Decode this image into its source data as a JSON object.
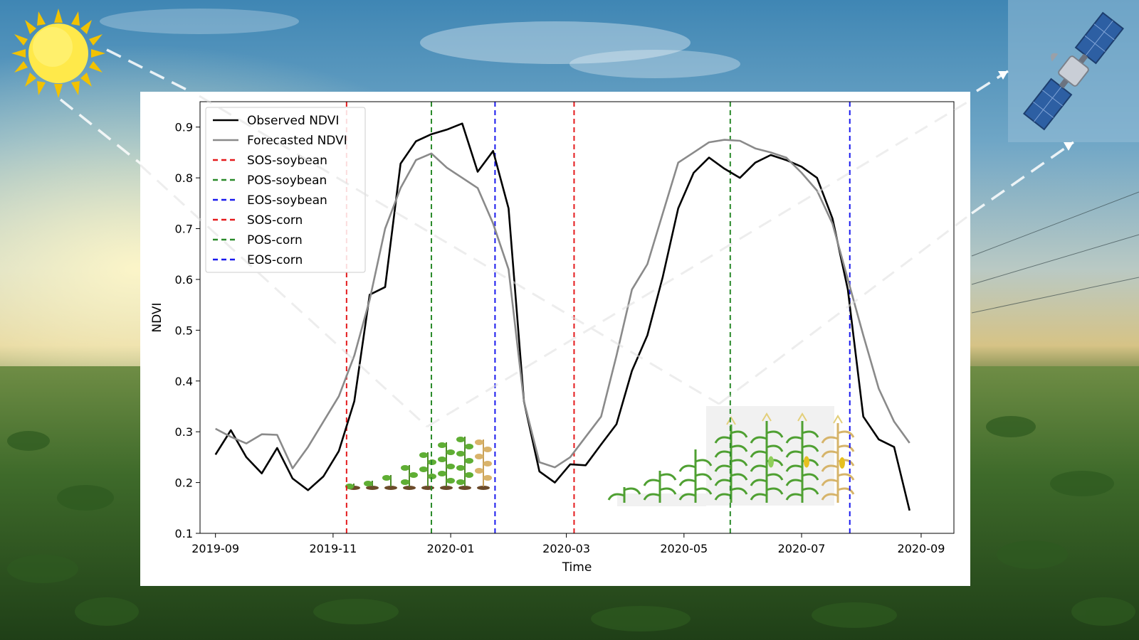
{
  "chart_data": {
    "type": "line",
    "title": "",
    "xlabel": "Time",
    "ylabel": "NDVI",
    "ylim": [
      0.1,
      0.95
    ],
    "xlim": [
      "2019-08-24",
      "2020-09-18"
    ],
    "grid": false,
    "legend_position": "top-left",
    "x_ticks": [
      "2019-09",
      "2019-11",
      "2020-01",
      "2020-03",
      "2020-05",
      "2020-07",
      "2020-09"
    ],
    "y_ticks": [
      "0.1",
      "0.2",
      "0.3",
      "0.4",
      "0.5",
      "0.6",
      "0.7",
      "0.8",
      "0.9"
    ],
    "series": [
      {
        "name": "Observed NDVI",
        "color": "#000000",
        "x": [
          "2019-09-01",
          "2019-09-09",
          "2019-09-17",
          "2019-09-25",
          "2019-10-03",
          "2019-10-11",
          "2019-10-19",
          "2019-10-27",
          "2019-11-04",
          "2019-11-12",
          "2019-11-20",
          "2019-11-28",
          "2019-12-06",
          "2019-12-14",
          "2019-12-22",
          "2019-12-30",
          "2020-01-07",
          "2020-01-15",
          "2020-01-23",
          "2020-01-31",
          "2020-02-08",
          "2020-02-16",
          "2020-02-24",
          "2020-03-03",
          "2020-03-11",
          "2020-03-19",
          "2020-03-27",
          "2020-04-04",
          "2020-04-12",
          "2020-04-20",
          "2020-04-28",
          "2020-05-06",
          "2020-05-14",
          "2020-05-22",
          "2020-05-30",
          "2020-06-07",
          "2020-06-15",
          "2020-06-23",
          "2020-07-01",
          "2020-07-09",
          "2020-07-17",
          "2020-07-25",
          "2020-08-02",
          "2020-08-10",
          "2020-08-18",
          "2020-08-26"
        ],
        "values": [
          0.255,
          0.303,
          0.25,
          0.218,
          0.268,
          0.208,
          0.185,
          0.212,
          0.262,
          0.36,
          0.57,
          0.585,
          0.828,
          0.872,
          0.886,
          0.895,
          0.907,
          0.812,
          0.853,
          0.74,
          0.36,
          0.222,
          0.2,
          0.236,
          0.234,
          0.275,
          0.315,
          0.42,
          0.49,
          0.605,
          0.74,
          0.81,
          0.84,
          0.818,
          0.8,
          0.83,
          0.845,
          0.835,
          0.822,
          0.8,
          0.72,
          0.58,
          0.33,
          0.285,
          0.27,
          0.145
        ]
      },
      {
        "name": "Forecasted NDVI",
        "color": "#8a8a8a",
        "x": [
          "2019-09-01",
          "2019-09-09",
          "2019-09-17",
          "2019-09-25",
          "2019-10-03",
          "2019-10-11",
          "2019-10-19",
          "2019-10-27",
          "2019-11-04",
          "2019-11-12",
          "2019-11-20",
          "2019-11-28",
          "2019-12-06",
          "2019-12-14",
          "2019-12-22",
          "2019-12-30",
          "2020-01-07",
          "2020-01-15",
          "2020-01-23",
          "2020-01-31",
          "2020-02-08",
          "2020-02-16",
          "2020-02-24",
          "2020-03-03",
          "2020-03-11",
          "2020-03-19",
          "2020-03-27",
          "2020-04-04",
          "2020-04-12",
          "2020-04-20",
          "2020-04-28",
          "2020-05-06",
          "2020-05-14",
          "2020-05-22",
          "2020-05-30",
          "2020-06-07",
          "2020-06-15",
          "2020-06-23",
          "2020-07-01",
          "2020-07-09",
          "2020-07-17",
          "2020-07-25",
          "2020-08-02",
          "2020-08-10",
          "2020-08-18",
          "2020-08-26"
        ],
        "values": [
          0.306,
          0.29,
          0.277,
          0.295,
          0.294,
          0.228,
          0.27,
          0.32,
          0.37,
          0.45,
          0.56,
          0.7,
          0.78,
          0.835,
          0.848,
          0.82,
          0.8,
          0.78,
          0.71,
          0.62,
          0.36,
          0.24,
          0.23,
          0.25,
          0.29,
          0.33,
          0.45,
          0.58,
          0.63,
          0.73,
          0.83,
          0.85,
          0.87,
          0.875,
          0.873,
          0.858,
          0.85,
          0.84,
          0.81,
          0.775,
          0.71,
          0.6,
          0.49,
          0.385,
          0.32,
          0.278
        ]
      }
    ],
    "vlines": [
      {
        "name": "SOS-soybean",
        "x": "2019-11-08",
        "color": "#e41a1c"
      },
      {
        "name": "POS-soybean",
        "x": "2019-12-22",
        "color": "#2a8a2a"
      },
      {
        "name": "EOS-soybean",
        "x": "2020-01-24",
        "color": "#1a1aee"
      },
      {
        "name": "SOS-corn",
        "x": "2020-03-05",
        "color": "#e41a1c"
      },
      {
        "name": "POS-corn",
        "x": "2020-05-25",
        "color": "#2a8a2a"
      },
      {
        "name": "EOS-corn",
        "x": "2020-07-26",
        "color": "#1a1aee"
      }
    ]
  },
  "decor": {
    "sun_icon": "sun-icon",
    "satellite_icon": "satellite-icon",
    "soybean_growth_icon": "soybean-growth-stages-icon",
    "corn_growth_icon": "corn-growth-stages-icon",
    "beam_color": "#ffffff"
  }
}
